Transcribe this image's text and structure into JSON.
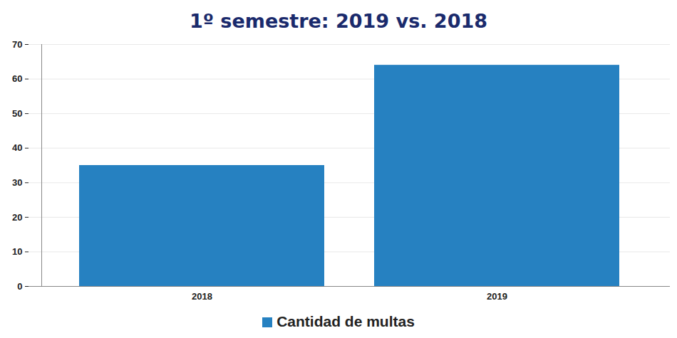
{
  "chart_data": {
    "type": "bar",
    "title": "1º semestre: 2019 vs. 2018",
    "categories": [
      "2018",
      "2019"
    ],
    "series": [
      {
        "name": "Cantidad de multas",
        "color": "#2681c1",
        "values": [
          35,
          64
        ]
      }
    ],
    "ylim": [
      0,
      70
    ],
    "yticks": [
      0,
      10,
      20,
      30,
      40,
      50,
      60,
      70
    ],
    "grid": true,
    "legend": "bottom"
  }
}
